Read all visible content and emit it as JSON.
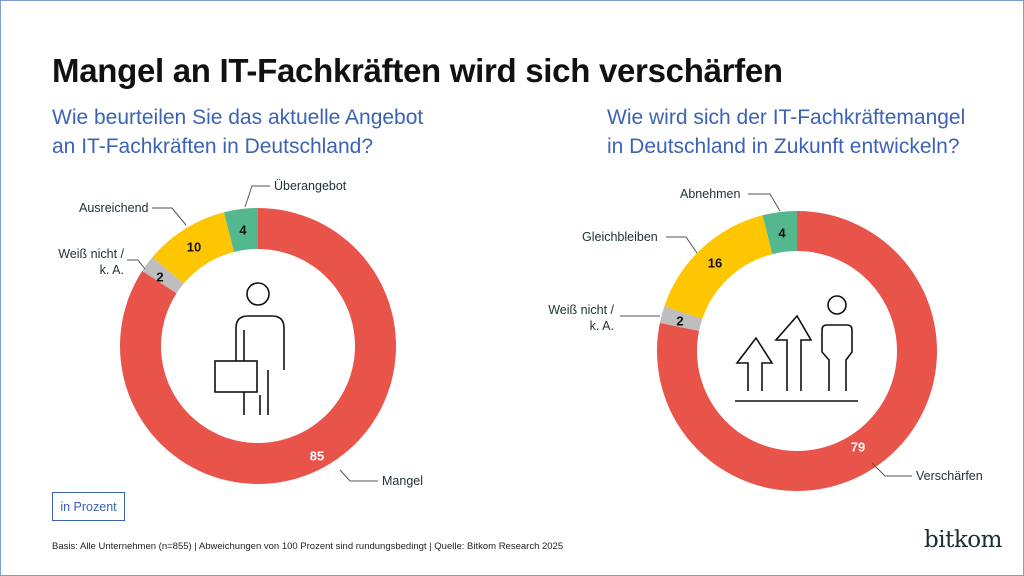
{
  "title": "Mangel an IT-Fachkräften wird sich verschärfen",
  "unit_label": "in Prozent",
  "footnote": "Basis: Alle Unternehmen (n=855) | Abweichungen von 100 Prozent sind rundungsbedingt | Quelle: Bitkom Research 2025",
  "logo": "bitkom",
  "chart_data": [
    {
      "type": "pie",
      "variant": "donut",
      "title": "Wie beurteilen Sie das aktuelle Angebot an IT-Fachkräften in Deutschland?",
      "title_lines": [
        "Wie beurteilen Sie das aktuelle Angebot",
        "an IT-Fachkräften in Deutschland?"
      ],
      "icon": "person-with-briefcase-icon",
      "slices": [
        {
          "label": "Mangel",
          "value": 85,
          "color": "#E8544A"
        },
        {
          "label": "Weiß nicht / k. A.",
          "label_lines": [
            "Weiß nicht /",
            "k. A."
          ],
          "value": 2,
          "color": "#BEBEBE"
        },
        {
          "label": "Ausreichend",
          "value": 10,
          "color": "#FDC600"
        },
        {
          "label": "Überangebot",
          "value": 4,
          "color": "#53B88E"
        }
      ]
    },
    {
      "type": "pie",
      "variant": "donut",
      "title": "Wie wird sich der IT-Fachkräftemangel in Deutschland in Zukunft entwickeln?",
      "title_lines": [
        "Wie wird sich der IT-Fachkräftemangel",
        "in Deutschland in Zukunft entwickeln?"
      ],
      "icon": "growth-arrows-person-icon",
      "slices": [
        {
          "label": "Verschärfen",
          "value": 79,
          "color": "#E8544A"
        },
        {
          "label": "Weiß nicht / k. A.",
          "label_lines": [
            "Weiß nicht /",
            "k. A."
          ],
          "value": 2,
          "color": "#BEBEBE"
        },
        {
          "label": "Gleichbleiben",
          "value": 16,
          "color": "#FDC600"
        },
        {
          "label": "Abnehmen",
          "value": 4,
          "color": "#53B88E"
        }
      ]
    }
  ]
}
